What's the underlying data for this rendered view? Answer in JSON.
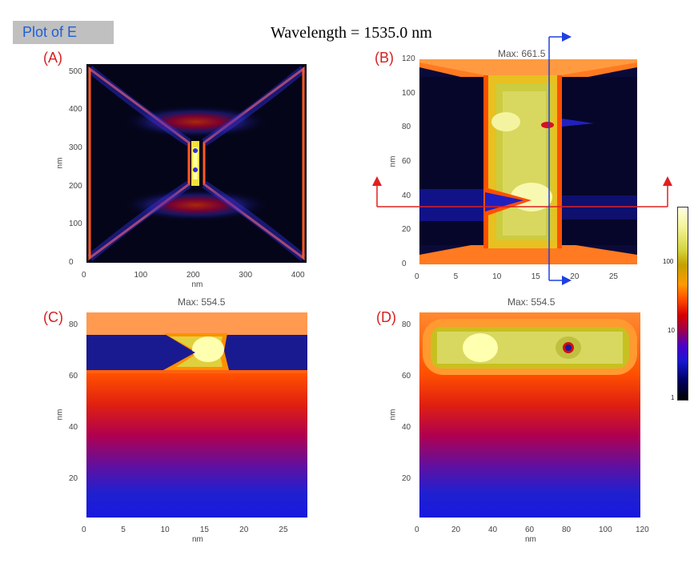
{
  "header": {
    "label": "Plot of E",
    "title": "Wavelength = 1535.0 nm"
  },
  "colorbar": {
    "ticks": [
      "100",
      "10",
      "1"
    ]
  },
  "chart_data": [
    {
      "type": "heatmap",
      "panel": "(A)",
      "title": "",
      "xlabel": "nm",
      "ylabel": "nm",
      "xlim": [
        0,
        420
      ],
      "ylim": [
        0,
        520
      ],
      "xticks": [
        "0",
        "100",
        "200",
        "300",
        "400"
      ],
      "yticks": [
        "0",
        "100",
        "200",
        "300",
        "400",
        "500"
      ],
      "scale": "log"
    },
    {
      "type": "heatmap",
      "panel": "(B)",
      "title": "Max: 661.5",
      "xlabel": "",
      "ylabel": "nm",
      "xlim": [
        0,
        28
      ],
      "ylim": [
        0,
        120
      ],
      "xticks": [
        "0",
        "5",
        "10",
        "15",
        "20",
        "25"
      ],
      "yticks": [
        "0",
        "20",
        "40",
        "60",
        "80",
        "100",
        "120"
      ],
      "scale": "log"
    },
    {
      "type": "heatmap",
      "panel": "(C)",
      "title": "Max: 554.5",
      "xlabel": "nm",
      "ylabel": "nm",
      "xlim": [
        0,
        28
      ],
      "ylim": [
        5,
        85
      ],
      "xticks": [
        "0",
        "5",
        "10",
        "15",
        "20",
        "25"
      ],
      "yticks": [
        "20",
        "40",
        "60",
        "80"
      ],
      "scale": "log"
    },
    {
      "type": "heatmap",
      "panel": "(D)",
      "title": "Max: 554.5",
      "xlabel": "nm",
      "ylabel": "nm",
      "xlim": [
        0,
        120
      ],
      "ylim": [
        5,
        85
      ],
      "xticks": [
        "0",
        "20",
        "40",
        "60",
        "80",
        "100",
        "120"
      ],
      "yticks": [
        "20",
        "40",
        "60",
        "80"
      ],
      "scale": "log"
    }
  ]
}
